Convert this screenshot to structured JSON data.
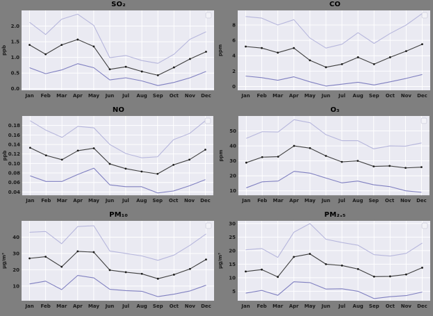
{
  "figure": {
    "background_color": "#7f7f7f",
    "plot_background_color": "#eaeaf2",
    "grid_color": "#ffffff",
    "series_colors": {
      "upper": "#b6b6dc",
      "mean": "#3d3d3d",
      "lower": "#7f7fc0"
    },
    "marker_color": "#1a1a1a",
    "legend_box": {
      "visible": true,
      "position": "upper-right",
      "entries": []
    },
    "months": [
      "Jan",
      "Feb",
      "Mar",
      "Apr",
      "May",
      "Jun",
      "Jul",
      "Aug",
      "Sep",
      "Oct",
      "Nov",
      "Dec"
    ]
  },
  "chart_data": [
    {
      "type": "line",
      "title": "SO₂",
      "ylabel": "ppb",
      "categories": [
        "Jan",
        "Feb",
        "Mar",
        "Apr",
        "May",
        "Jun",
        "Jul",
        "Aug",
        "Sep",
        "Oct",
        "Nov",
        "Dec"
      ],
      "ylim": [
        -0.05,
        2.5
      ],
      "yticks": [
        0.0,
        0.5,
        1.0,
        1.5,
        2.0
      ],
      "ytick_labels": [
        "0.0",
        "0.5",
        "1.0",
        "1.5",
        "2.0"
      ],
      "grid": true,
      "legend_position": "upper-right-empty",
      "series": [
        {
          "name": "upper",
          "values": [
            2.12,
            1.73,
            2.22,
            2.38,
            2.02,
            0.99,
            1.06,
            0.9,
            0.81,
            1.1,
            1.58,
            1.82
          ]
        },
        {
          "name": "mean",
          "markers": true,
          "values": [
            1.4,
            1.1,
            1.4,
            1.57,
            1.35,
            0.62,
            0.7,
            0.55,
            0.43,
            0.68,
            0.95,
            1.18
          ]
        },
        {
          "name": "lower",
          "values": [
            0.67,
            0.48,
            0.6,
            0.8,
            0.67,
            0.28,
            0.35,
            0.25,
            0.1,
            0.2,
            0.35,
            0.55
          ]
        }
      ]
    },
    {
      "type": "line",
      "title": "CO",
      "ylabel": "ppm",
      "categories": [
        "Jan",
        "Feb",
        "Mar",
        "Apr",
        "May",
        "Jun",
        "Jul",
        "Aug",
        "Sep",
        "Oct",
        "Nov",
        "Dec"
      ],
      "ylim": [
        -0.5,
        9.9
      ],
      "yticks": [
        0,
        2,
        4,
        6,
        8
      ],
      "ytick_labels": [
        "0",
        "2",
        "4",
        "6",
        "8"
      ],
      "grid": true,
      "legend_position": "upper-right-empty",
      "series": [
        {
          "name": "upper",
          "values": [
            9.1,
            8.9,
            8.0,
            8.7,
            6.3,
            5.0,
            5.5,
            7.0,
            5.6,
            6.9,
            8.0,
            9.5
          ]
        },
        {
          "name": "mean",
          "markers": true,
          "values": [
            5.2,
            5.0,
            4.4,
            5.0,
            3.4,
            2.5,
            2.9,
            3.8,
            2.9,
            3.8,
            4.6,
            5.5
          ]
        },
        {
          "name": "lower",
          "values": [
            1.35,
            1.15,
            0.8,
            1.25,
            0.6,
            0.05,
            0.3,
            0.55,
            0.2,
            0.6,
            1.05,
            1.55
          ]
        }
      ]
    },
    {
      "type": "line",
      "title": "NO",
      "ylabel": "ppb",
      "categories": [
        "Jan",
        "Feb",
        "Mar",
        "Apr",
        "May",
        "Jun",
        "Jul",
        "Aug",
        "Sep",
        "Oct",
        "Nov",
        "Dec"
      ],
      "ylim": [
        0.033,
        0.2
      ],
      "yticks": [
        0.04,
        0.06,
        0.08,
        0.1,
        0.12,
        0.14,
        0.16,
        0.18
      ],
      "ytick_labels": [
        "0.04",
        "0.06",
        "0.08",
        "0.10",
        "0.12",
        "0.14",
        "0.16",
        "0.18"
      ],
      "grid": true,
      "legend_position": "upper-right-empty",
      "series": [
        {
          "name": "upper",
          "values": [
            0.19,
            0.17,
            0.155,
            0.178,
            0.175,
            0.14,
            0.121,
            0.112,
            0.114,
            0.15,
            0.163,
            0.19
          ]
        },
        {
          "name": "mean",
          "markers": true,
          "values": [
            0.133,
            0.117,
            0.108,
            0.127,
            0.132,
            0.099,
            0.089,
            0.083,
            0.078,
            0.097,
            0.108,
            0.129
          ]
        },
        {
          "name": "lower",
          "values": [
            0.074,
            0.062,
            0.062,
            0.077,
            0.09,
            0.055,
            0.051,
            0.051,
            0.038,
            0.042,
            0.053,
            0.066
          ]
        }
      ]
    },
    {
      "type": "line",
      "title": "O₃",
      "ylabel": "ppm",
      "categories": [
        "Jan",
        "Feb",
        "Mar",
        "Apr",
        "May",
        "Jun",
        "Jul",
        "Aug",
        "Sep",
        "Oct",
        "Nov",
        "Dec"
      ],
      "ylim": [
        7,
        60
      ],
      "yticks": [
        10,
        20,
        30,
        40,
        50
      ],
      "ytick_labels": [
        "10",
        "20",
        "30",
        "40",
        "50"
      ],
      "grid": true,
      "legend_position": "upper-right-empty",
      "series": [
        {
          "name": "upper",
          "values": [
            45,
            49.5,
            49.3,
            57.5,
            55.5,
            47.5,
            43.5,
            43.5,
            38,
            40,
            39.8,
            42
          ]
        },
        {
          "name": "mean",
          "markers": true,
          "values": [
            28.8,
            32.5,
            32.8,
            40,
            38.5,
            33.3,
            29.3,
            30,
            26.3,
            26.6,
            25.3,
            25.8
          ]
        },
        {
          "name": "lower",
          "values": [
            12,
            16,
            16.5,
            23,
            21.8,
            18.5,
            15.3,
            16.5,
            14,
            12.8,
            10,
            9
          ]
        }
      ]
    },
    {
      "type": "line",
      "title": "PM₁₀",
      "ylabel": "μg/m³",
      "categories": [
        "Jan",
        "Feb",
        "Mar",
        "Apr",
        "May",
        "Jun",
        "Jul",
        "Aug",
        "Sep",
        "Oct",
        "Nov",
        "Dec"
      ],
      "ylim": [
        1,
        50
      ],
      "yticks": [
        10,
        20,
        30,
        40
      ],
      "ytick_labels": [
        "10",
        "20",
        "30",
        "40"
      ],
      "grid": true,
      "legend_position": "upper-right-empty",
      "series": [
        {
          "name": "upper",
          "values": [
            43,
            43.5,
            36,
            46.5,
            47,
            31.5,
            30,
            28.5,
            25.8,
            29,
            35,
            42
          ]
        },
        {
          "name": "mean",
          "markers": true,
          "values": [
            27,
            28,
            21.8,
            31.3,
            30.8,
            19.8,
            18.5,
            17.5,
            14.5,
            17,
            20.5,
            26.3
          ]
        },
        {
          "name": "lower",
          "values": [
            11.3,
            13,
            7.8,
            16.5,
            15,
            8,
            7.2,
            6.8,
            3.5,
            5,
            7,
            10.5
          ]
        }
      ]
    },
    {
      "type": "line",
      "title": "PM₂.₅",
      "ylabel": "μg/m³",
      "categories": [
        "Jan",
        "Feb",
        "Mar",
        "Apr",
        "May",
        "Jun",
        "Jul",
        "Aug",
        "Sep",
        "Oct",
        "Nov",
        "Dec"
      ],
      "ylim": [
        1.5,
        31
      ],
      "yticks": [
        5,
        10,
        15,
        20,
        25,
        30
      ],
      "ytick_labels": [
        "5",
        "10",
        "15",
        "20",
        "25",
        "30"
      ],
      "grid": true,
      "legend_position": "upper-right-empty",
      "series": [
        {
          "name": "upper",
          "values": [
            20.3,
            20.8,
            17.5,
            26.8,
            30,
            24.2,
            23,
            22,
            18.5,
            18,
            19,
            22.8
          ]
        },
        {
          "name": "mean",
          "markers": true,
          "values": [
            12.3,
            13,
            10.3,
            17.7,
            18.8,
            15,
            14.5,
            13.2,
            10.4,
            10.5,
            11.2,
            13.7
          ]
        },
        {
          "name": "lower",
          "values": [
            4.3,
            5.3,
            3.5,
            8.5,
            8.2,
            5.8,
            5.9,
            5,
            2.3,
            3,
            3.4,
            4.7
          ]
        }
      ]
    }
  ]
}
